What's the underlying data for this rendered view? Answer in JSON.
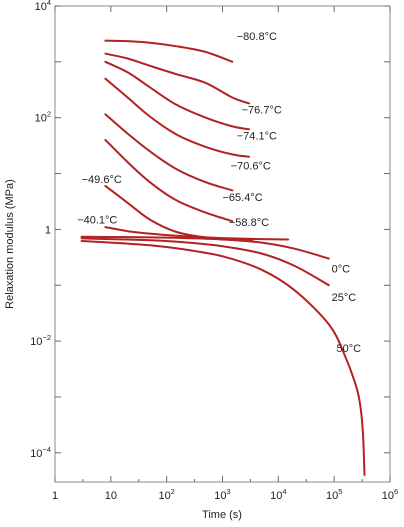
{
  "chart_data": {
    "type": "line",
    "xlabel": "Time (s)",
    "ylabel": "Relaxation modulus (MPa)",
    "x_scale": "log",
    "y_scale": "log",
    "xlim": [
      1,
      1000000
    ],
    "ylim": [
      3e-05,
      10000
    ],
    "grid": false,
    "line_color": "#b22222",
    "x_ticks": [
      {
        "value": 1,
        "base": "1",
        "exp": ""
      },
      {
        "value": 10,
        "base": "10",
        "exp": ""
      },
      {
        "value": 100,
        "base": "10",
        "exp": "2"
      },
      {
        "value": 1000,
        "base": "10",
        "exp": "3"
      },
      {
        "value": 10000,
        "base": "10",
        "exp": "4"
      },
      {
        "value": 100000,
        "base": "10",
        "exp": "5"
      },
      {
        "value": 1000000,
        "base": "10",
        "exp": "6"
      }
    ],
    "y_ticks": [
      {
        "value": 0.0001,
        "base": "10",
        "exp": "−4"
      },
      {
        "value": 0.01,
        "base": "10",
        "exp": "−2"
      },
      {
        "value": 1,
        "base": "1",
        "exp": ""
      },
      {
        "value": 100,
        "base": "10",
        "exp": "2"
      },
      {
        "value": 10000,
        "base": "10",
        "exp": "4"
      }
    ],
    "series": [
      {
        "name": "−80.8°C",
        "label_at": [
          1800,
          2900
        ],
        "x": [
          8,
          20,
          50,
          150,
          500,
          1500
        ],
        "y": [
          2400,
          2350,
          2200,
          1900,
          1500,
          1000
        ]
      },
      {
        "name": "−76.7°C",
        "label_at": [
          2200,
          140
        ],
        "x": [
          8,
          20,
          50,
          150,
          500,
          1500,
          3000
        ],
        "y": [
          1400,
          1150,
          850,
          600,
          420,
          230,
          180
        ]
      },
      {
        "name": "−74.1°C",
        "label_at": [
          1800,
          48
        ],
        "x": [
          8,
          20,
          50,
          150,
          500,
          1500,
          3000
        ],
        "y": [
          1000,
          650,
          350,
          170,
          100,
          70,
          62
        ]
      },
      {
        "name": "−70.6°C",
        "label_at": [
          1400,
          14
        ],
        "x": [
          8,
          20,
          50,
          150,
          500,
          1500,
          3000
        ],
        "y": [
          500,
          230,
          105,
          50,
          30,
          22,
          20
        ]
      },
      {
        "name": "−65.4°C",
        "label_at": [
          1000,
          3.8
        ],
        "x": [
          8,
          20,
          50,
          150,
          500,
          1500
        ],
        "y": [
          115,
          52,
          25,
          12,
          7,
          5
        ]
      },
      {
        "name": "−58.8°C",
        "label_at": [
          1300,
          1.35
        ],
        "x": [
          8,
          20,
          50,
          150,
          500,
          1500
        ],
        "y": [
          40,
          16,
          7,
          3.3,
          2,
          1.4
        ]
      },
      {
        "name": "−49.6°C",
        "label_at": [
          3,
          8
        ],
        "x": [
          8,
          20,
          50,
          150,
          500,
          1500,
          3500
        ],
        "y": [
          6,
          3,
          1.5,
          0.9,
          0.72,
          0.67,
          0.65
        ]
      },
      {
        "name": "−40.1°C",
        "label_at": [
          2.5,
          1.5
        ],
        "x": [
          8,
          20,
          50,
          150,
          500,
          1500,
          5000,
          15000
        ],
        "y": [
          1.1,
          0.93,
          0.84,
          0.77,
          0.72,
          0.69,
          0.67,
          0.66
        ]
      },
      {
        "name": "0°C",
        "label_at": [
          90000,
          0.2
        ],
        "x": [
          3,
          10,
          50,
          200,
          1000,
          5000,
          20000,
          80000
        ],
        "y": [
          0.74,
          0.73,
          0.72,
          0.7,
          0.66,
          0.58,
          0.45,
          0.3
        ]
      },
      {
        "name": "25°C",
        "label_at": [
          90000,
          0.062
        ],
        "x": [
          3,
          10,
          50,
          200,
          1000,
          5000,
          20000,
          80000
        ],
        "y": [
          0.69,
          0.67,
          0.64,
          0.59,
          0.5,
          0.37,
          0.22,
          0.1
        ]
      },
      {
        "name": "50°C",
        "label_at": [
          110000,
          0.0075
        ],
        "x": [
          3,
          10,
          50,
          200,
          1000,
          5000,
          20000,
          80000,
          150000,
          250000,
          300000,
          330000,
          350000
        ],
        "y": [
          0.62,
          0.58,
          0.52,
          0.44,
          0.33,
          0.19,
          0.08,
          0.02,
          0.006,
          0.0015,
          0.0006,
          0.0002,
          4e-05
        ]
      }
    ]
  }
}
